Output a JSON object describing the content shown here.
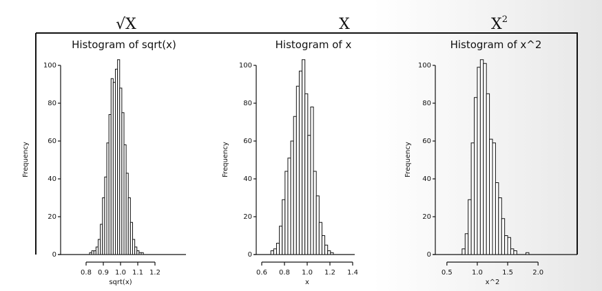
{
  "top_labels": [
    {
      "base": "√X",
      "sup": ""
    },
    {
      "base": "X",
      "sup": ""
    },
    {
      "base": "X",
      "sup": "2"
    }
  ],
  "chart_data": [
    {
      "type": "bar",
      "title": "Histogram of sqrt(x)",
      "xlabel": "sqrt(x)",
      "ylabel": "Frequency",
      "xlim": [
        0.7,
        1.3
      ],
      "ylim": [
        0,
        100
      ],
      "xticks": [
        "0.8",
        "0.9",
        "1.0",
        "1.1",
        "1.2"
      ],
      "yticks": [
        "0",
        "20",
        "40",
        "60",
        "80",
        "100"
      ],
      "bin_width": 0.0125,
      "bin_start": 0.82,
      "values": [
        1,
        2,
        2,
        4,
        8,
        16,
        30,
        41,
        59,
        74,
        93,
        91,
        98,
        103,
        88,
        75,
        58,
        43,
        30,
        17,
        8,
        4,
        2,
        1,
        1
      ]
    },
    {
      "type": "bar",
      "title": "Histogram of x",
      "xlabel": "x",
      "ylabel": "Frequency",
      "xlim": [
        0.6,
        1.4
      ],
      "ylim": [
        0,
        100
      ],
      "xticks": [
        "0.6",
        "0.8",
        "1.0",
        "1.2",
        "1.4"
      ],
      "yticks": [
        "0",
        "20",
        "40",
        "60",
        "80",
        "100"
      ],
      "bin_width": 0.025,
      "bin_start": 0.68,
      "values": [
        2,
        3,
        6,
        15,
        29,
        44,
        51,
        60,
        73,
        89,
        97,
        103,
        85,
        63,
        78,
        44,
        31,
        17,
        10,
        5,
        2,
        1
      ]
    },
    {
      "type": "bar",
      "title": "Histogram of x^2",
      "xlabel": "x^2",
      "ylabel": "Frequency",
      "xlim": [
        0.4,
        2.1
      ],
      "ylim": [
        0,
        100
      ],
      "xticks": [
        "0.5",
        "1.0",
        "1.5",
        "2.0"
      ],
      "yticks": [
        "0",
        "20",
        "40",
        "60",
        "80",
        "100"
      ],
      "bin_width": 0.05,
      "bin_start": 0.75,
      "values": [
        3,
        11,
        29,
        59,
        83,
        99,
        103,
        101,
        85,
        61,
        59,
        38,
        30,
        19,
        10,
        9,
        3,
        2,
        0,
        0,
        0,
        1
      ]
    }
  ]
}
